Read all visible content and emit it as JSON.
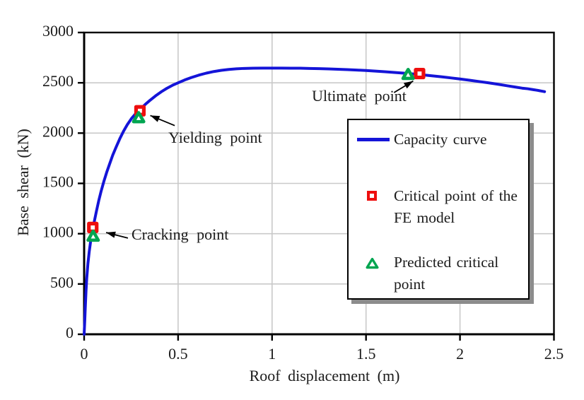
{
  "colors": {
    "curve": "#1414d8",
    "fe_marker": "#ee0e0e",
    "predicted_marker": "#00a550",
    "grid": "#c9c9c9",
    "axis": "#000000",
    "text": "#1b1b1b",
    "legend_shadow": "#8c8c8c"
  },
  "chart_data": {
    "type": "line",
    "title": "",
    "xlabel": "Roof displacement (m)",
    "ylabel": "Base shear (kN)",
    "xlim": [
      0,
      2.5
    ],
    "ylim": [
      0,
      3000
    ],
    "grid": true,
    "xticks": {
      "values": [
        0,
        0.5,
        1,
        1.5,
        2,
        2.5
      ],
      "labels": [
        "0",
        "0.5",
        "1",
        "1.5",
        "2",
        "2.5"
      ]
    },
    "yticks": {
      "values": [
        0,
        500,
        1000,
        1500,
        2000,
        2500,
        3000
      ],
      "labels": [
        "0",
        "500",
        "1000",
        "1500",
        "2000",
        "2500",
        "3000"
      ]
    },
    "series": [
      {
        "name": "Capacity curve",
        "kind": "line",
        "points": [
          [
            0,
            0
          ],
          [
            0.003,
            120
          ],
          [
            0.006,
            260
          ],
          [
            0.01,
            430
          ],
          [
            0.014,
            560
          ],
          [
            0.02,
            700
          ],
          [
            0.027,
            820
          ],
          [
            0.035,
            930
          ],
          [
            0.045,
            1040
          ],
          [
            0.055,
            1130
          ],
          [
            0.065,
            1220
          ],
          [
            0.078,
            1330
          ],
          [
            0.09,
            1420
          ],
          [
            0.105,
            1520
          ],
          [
            0.12,
            1610
          ],
          [
            0.135,
            1690
          ],
          [
            0.152,
            1780
          ],
          [
            0.17,
            1860
          ],
          [
            0.19,
            1945
          ],
          [
            0.21,
            2020
          ],
          [
            0.23,
            2085
          ],
          [
            0.252,
            2145
          ],
          [
            0.275,
            2195
          ],
          [
            0.3,
            2240
          ],
          [
            0.325,
            2285
          ],
          [
            0.35,
            2325
          ],
          [
            0.38,
            2370
          ],
          [
            0.41,
            2410
          ],
          [
            0.44,
            2445
          ],
          [
            0.47,
            2475
          ],
          [
            0.5,
            2500
          ],
          [
            0.535,
            2528
          ],
          [
            0.57,
            2552
          ],
          [
            0.61,
            2576
          ],
          [
            0.65,
            2596
          ],
          [
            0.69,
            2612
          ],
          [
            0.73,
            2624
          ],
          [
            0.77,
            2633
          ],
          [
            0.81,
            2639
          ],
          [
            0.85,
            2643
          ],
          [
            0.9,
            2645
          ],
          [
            0.95,
            2646
          ],
          [
            1,
            2646
          ],
          [
            1.05,
            2646
          ],
          [
            1.1,
            2645
          ],
          [
            1.15,
            2645
          ],
          [
            1.2,
            2643
          ],
          [
            1.25,
            2641
          ],
          [
            1.3,
            2638
          ],
          [
            1.35,
            2635
          ],
          [
            1.4,
            2631
          ],
          [
            1.45,
            2627
          ],
          [
            1.5,
            2622
          ],
          [
            1.55,
            2616
          ],
          [
            1.6,
            2610
          ],
          [
            1.65,
            2603
          ],
          [
            1.7,
            2596
          ],
          [
            1.75,
            2588
          ],
          [
            1.8,
            2579
          ],
          [
            1.85,
            2570
          ],
          [
            1.9,
            2560
          ],
          [
            1.95,
            2549
          ],
          [
            2,
            2538
          ],
          [
            2.05,
            2526
          ],
          [
            2.1,
            2513
          ],
          [
            2.15,
            2500
          ],
          [
            2.2,
            2486
          ],
          [
            2.25,
            2471
          ],
          [
            2.29,
            2459
          ],
          [
            2.33,
            2447
          ],
          [
            2.36,
            2441
          ],
          [
            2.39,
            2432
          ],
          [
            2.41,
            2426
          ],
          [
            2.43,
            2419
          ],
          [
            2.45,
            2412
          ]
        ]
      },
      {
        "name": "Critical point of the FE model",
        "kind": "scatter",
        "marker": "square",
        "points": [
          [
            0.046,
            1062
          ],
          [
            0.297,
            2222
          ],
          [
            1.785,
            2592
          ]
        ]
      },
      {
        "name": "Predicted critical point",
        "kind": "scatter",
        "marker": "triangle",
        "points": [
          [
            0.048,
            972
          ],
          [
            0.29,
            2150
          ],
          [
            1.724,
            2580
          ]
        ]
      }
    ],
    "annotations": [
      {
        "label": "Cracking point",
        "text_xy": [
          0.252,
          977
        ],
        "arrow_from": [
          0.233,
          956
        ],
        "arrow_to": [
          0.117,
          1012
        ]
      },
      {
        "label": "Yielding point",
        "text_xy": [
          0.448,
          1939
        ],
        "arrow_from": [
          0.482,
          2075
        ],
        "arrow_to": [
          0.352,
          2175
        ]
      },
      {
        "label": "Ultimate point",
        "text_xy": [
          1.212,
          2354
        ],
        "arrow_from": [
          1.649,
          2403
        ],
        "arrow_to": [
          1.751,
          2518
        ]
      }
    ],
    "legend": {
      "position": "inside-right",
      "entries": [
        {
          "label": "Capacity curve",
          "swatch": "line"
        },
        {
          "label": "Critical point of the FE model",
          "swatch": "square"
        },
        {
          "label": "Predicted critical point",
          "swatch": "triangle"
        }
      ]
    }
  }
}
